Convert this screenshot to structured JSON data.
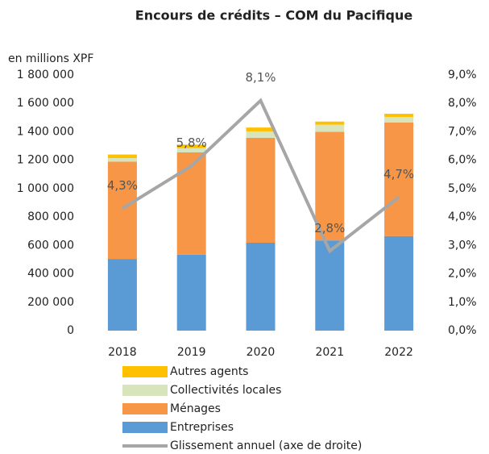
{
  "chart_data": {
    "type": "bar",
    "title": "Encours de crédits – COM du Pacifique",
    "y_axis_label": "en millions XPF",
    "categories": [
      "2018",
      "2019",
      "2020",
      "2021",
      "2022"
    ],
    "stacked": true,
    "series": [
      {
        "name": "Entreprises",
        "color": "#5b9bd5",
        "values": [
          505000,
          535000,
          619000,
          635000,
          665000
        ]
      },
      {
        "name": "Ménages",
        "color": "#f79646",
        "values": [
          685000,
          720000,
          739000,
          765000,
          800000
        ]
      },
      {
        "name": "Collectivités locales",
        "color": "#d8e4bc",
        "values": [
          25000,
          30000,
          45000,
          50000,
          40000
        ]
      },
      {
        "name": "Autres agents",
        "color": "#ffc000",
        "values": [
          25000,
          25000,
          27000,
          22000,
          22000
        ]
      },
      {
        "name": "Glissement annuel (axe de droite)",
        "type": "line",
        "axis": "y2",
        "color": "#a6a6a6",
        "values": [
          4.3,
          5.8,
          8.1,
          2.8,
          4.7
        ],
        "value_labels": [
          "4,3%",
          "5,8%",
          "8,1%",
          "2,8%",
          "4,7%"
        ]
      }
    ],
    "ylim": [
      0,
      1800000
    ],
    "yticks": [
      0,
      {
        "value": 200000,
        "label": "200 000"
      },
      {
        "value": 400000,
        "label": "400 000"
      },
      {
        "value": 600000,
        "label": "600 000"
      },
      {
        "value": 800000,
        "label": "800 000"
      },
      {
        "value": 1000000,
        "label": "1 000 000"
      },
      {
        "value": 1200000,
        "label": "1 200 000"
      },
      {
        "value": 1400000,
        "label": "1 400 000"
      },
      {
        "value": 1600000,
        "label": "1 600 000"
      },
      {
        "value": 1800000,
        "label": "1 800 000"
      }
    ],
    "y2lim": [
      0,
      9
    ],
    "y2ticks": [
      {
        "value": 0,
        "label": "0,0%"
      },
      {
        "value": 1,
        "label": "1,0%"
      },
      {
        "value": 2,
        "label": "2,0%"
      },
      {
        "value": 3,
        "label": "3,0%"
      },
      {
        "value": 4,
        "label": "4,0%"
      },
      {
        "value": 5,
        "label": "5,0%"
      },
      {
        "value": 6,
        "label": "6,0%"
      },
      {
        "value": 7,
        "label": "7,0%"
      },
      {
        "value": 8,
        "label": "8,0%"
      },
      {
        "value": 9,
        "label": "9,0%"
      }
    ],
    "grid": false,
    "legend": "bottom"
  }
}
